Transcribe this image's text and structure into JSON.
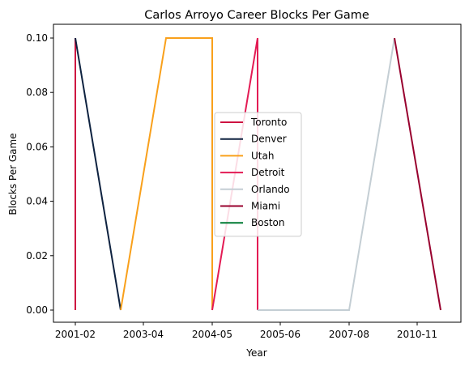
{
  "chart_data": {
    "type": "line",
    "title": "Carlos Arroyo Career Blocks Per Game",
    "xlabel": "Year",
    "ylabel": "Blocks Per Game",
    "x_ticks": [
      "2001-02",
      "2003-04",
      "2004-05",
      "2005-06",
      "2007-08",
      "2010-11"
    ],
    "y_ticks": [
      "0.00",
      "0.02",
      "0.04",
      "0.06",
      "0.08",
      "0.10"
    ],
    "ylim": [
      0,
      0.1
    ],
    "legend_position": "center",
    "grid": false,
    "series": [
      {
        "name": "Toronto",
        "color": "#ce1141",
        "points": [
          {
            "x": "2001-02",
            "y": 0.0
          },
          {
            "x": "2001-02",
            "y": 0.1
          }
        ]
      },
      {
        "name": "Denver",
        "color": "#0e2240",
        "points": [
          {
            "x": "2001-02",
            "y": 0.1
          },
          {
            "x": "2002-03",
            "y": 0.0
          }
        ]
      },
      {
        "name": "Utah",
        "color": "#f9a01b",
        "points": [
          {
            "x": "2002-03",
            "y": 0.0
          },
          {
            "x": "2003-04",
            "y": 0.1
          },
          {
            "x": "2004-05",
            "y": 0.1
          },
          {
            "x": "2004-05",
            "y": 0.0
          }
        ]
      },
      {
        "name": "Detroit",
        "color": "#e31b54",
        "points": [
          {
            "x": "2004-05",
            "y": 0.0
          },
          {
            "x": "2005-06",
            "y": 0.1
          },
          {
            "x": "2005-06",
            "y": 0.0
          }
        ]
      },
      {
        "name": "Orlando",
        "color": "#c4ced4",
        "points": [
          {
            "x": "2005-06",
            "y": 0.0
          },
          {
            "x": "2007-08",
            "y": 0.0
          },
          {
            "x": "2008-09",
            "y": 0.1
          }
        ]
      },
      {
        "name": "Miami",
        "color": "#98002e",
        "points": [
          {
            "x": "2008-09",
            "y": 0.1
          },
          {
            "x": "2010-11",
            "y": 0.0
          }
        ]
      },
      {
        "name": "Boston",
        "color": "#007a33",
        "points": []
      }
    ]
  }
}
